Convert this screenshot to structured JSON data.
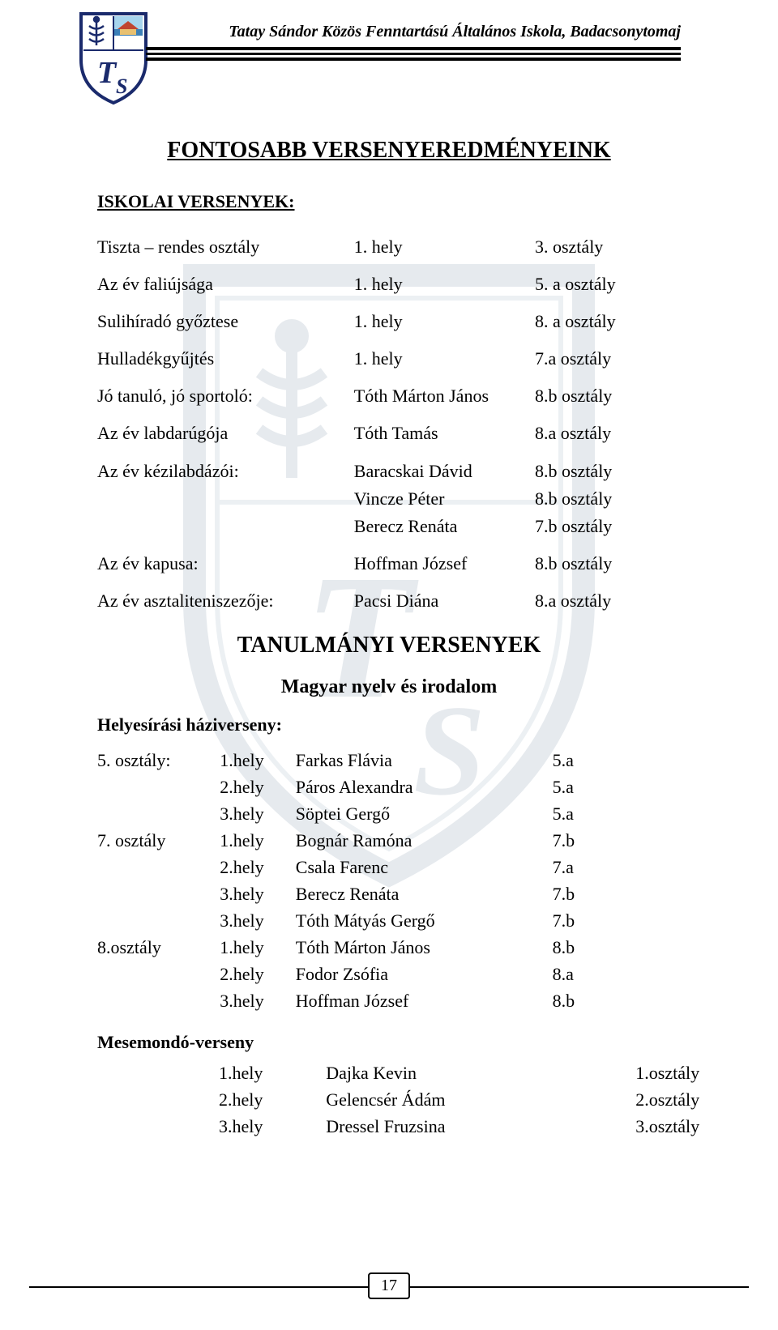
{
  "header": {
    "school_name": "Tatay Sándor Közös Fenntartású Általános Iskola, Badacsonytomaj",
    "logo": {
      "outline_color": "#1a2a6c",
      "bg_color": "#ffffff",
      "letters_color": "#1a2a6c",
      "top_panel_fill": "#b8d8b8",
      "sky": "#a6d4ed",
      "water": "#3b7fb7",
      "roof": "#c0442f"
    }
  },
  "page_number": "17",
  "titles": {
    "main": "FONTOSABB VERSENYEREDMÉNYEINK",
    "school_comp": "ISKOLAI  VERSENYEK:",
    "tanulmanyi": "TANULMÁNYI VERSENYEK",
    "magyar": "Magyar nyelv és irodalom",
    "helyesiras": "Helyesírási  háziverseny:",
    "mesemondo": "Mesemondó-verseny"
  },
  "iskolai": [
    {
      "label": "Tiszta – rendes osztály",
      "mid": "1.    hely",
      "right": "3. osztály"
    },
    {
      "label": "Az év faliújsága",
      "mid": "1.    hely",
      "right": "5. a osztály"
    },
    {
      "label": "Sulihíradó győztese",
      "mid": "1.    hely",
      "right": "8. a osztály"
    },
    {
      "label": "Hulladékgyűjtés",
      "mid": "1.    hely",
      "right": "7.a osztály"
    },
    {
      "label": "Jó tanuló, jó sportoló:",
      "mid": "Tóth Márton János",
      "right": "8.b osztály"
    },
    {
      "label": "Az év labdarúgója",
      "mid": "Tóth Tamás",
      "right": "8.a osztály"
    },
    {
      "label": "Az év kézilabdázói:",
      "mid": "Baracskai Dávid",
      "right": "8.b osztály"
    },
    {
      "label": "",
      "mid": "Vincze Péter",
      "right": "8.b osztály"
    },
    {
      "label": "",
      "mid": "Berecz Renáta",
      "right": "7.b osztály"
    },
    {
      "label": "Az év kapusa:",
      "mid": "Hoffman József",
      "right": "8.b osztály"
    },
    {
      "label": "Az év asztaliteniszezője:",
      "mid": "Pacsi Diána",
      "right": "8.a osztály"
    }
  ],
  "iskolai_spacer_after": [
    0,
    1,
    2,
    3,
    4,
    5,
    8,
    9
  ],
  "helyesiras": [
    {
      "grade": "5. osztály:",
      "place": "1.hely",
      "name": "Farkas Flávia",
      "cls": "5.a"
    },
    {
      "grade": "",
      "place": "2.hely",
      "name": "Páros Alexandra",
      "cls": "5.a"
    },
    {
      "grade": "",
      "place": "3.hely",
      "name": "Söptei Gergő",
      "cls": "5.a"
    },
    {
      "grade": "7. osztály",
      "place": "1.hely",
      "name": "Bognár Ramóna",
      "cls": "7.b"
    },
    {
      "grade": "",
      "place": "2.hely",
      "name": "Csala Farenc",
      "cls": "7.a"
    },
    {
      "grade": "",
      "place": "3.hely",
      "name": "Berecz Renáta",
      "cls": "7.b"
    },
    {
      "grade": "",
      "place": "3.hely",
      "name": "Tóth Mátyás Gergő",
      "cls": "7.b"
    },
    {
      "grade": "8.osztály",
      "place": "1.hely",
      "name": "Tóth Márton János",
      "cls": "8.b"
    },
    {
      "grade": "",
      "place": "2.hely",
      "name": "Fodor Zsófia",
      "cls": "8.a"
    },
    {
      "grade": "",
      "place": "3.hely",
      "name": "Hoffman József",
      "cls": "8.b"
    }
  ],
  "mesemondo": [
    {
      "place": "1.hely",
      "name": "Dajka Kevin",
      "cls": "1.osztály"
    },
    {
      "place": "2.hely",
      "name": "Gelencsér Ádám",
      "cls": "2.osztály"
    },
    {
      "place": "3.hely",
      "name": "Dressel Fruzsina",
      "cls": "3.osztály"
    }
  ],
  "watermark": {
    "stroke": "#8aa0b5",
    "inner_line": "#9fb3c6",
    "divider": "#9fb3c6"
  }
}
